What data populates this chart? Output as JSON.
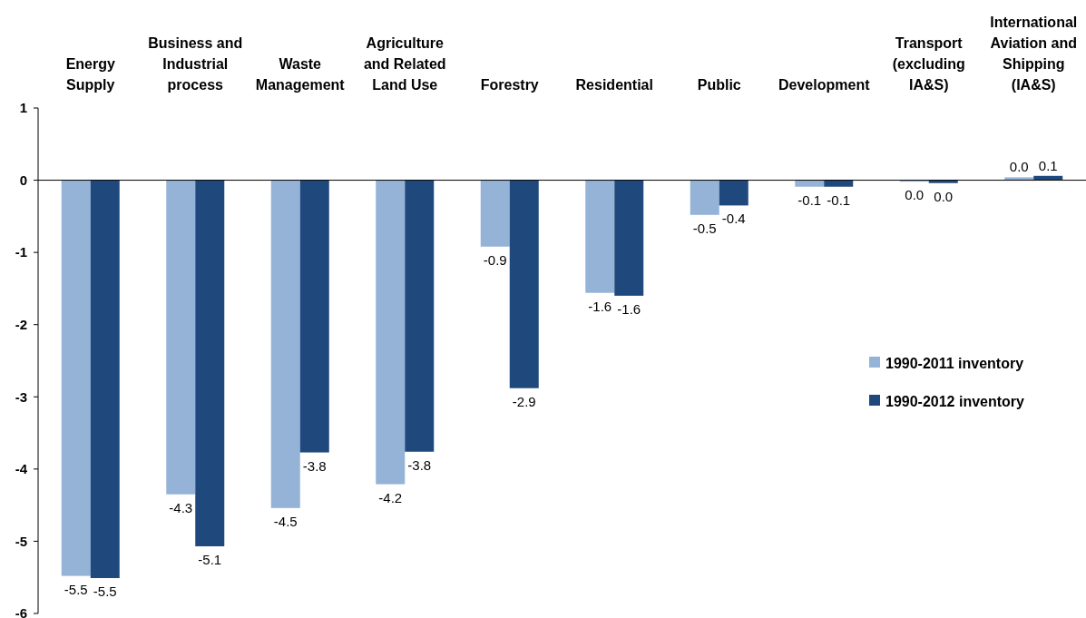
{
  "chart_data": {
    "type": "bar",
    "categories": [
      "Energy Supply",
      "Business and Industrial process",
      "Waste Management",
      "Agriculture and Related Land Use",
      "Forestry",
      "Residential",
      "Public",
      "Development",
      "Transport (excluding IA&S)",
      "International Aviation and Shipping (IA&S)"
    ],
    "series": [
      {
        "name": "1990-2011 inventory",
        "color": "#95b3d7",
        "values": [
          -5.48,
          -4.35,
          -4.54,
          -4.21,
          -0.92,
          -1.56,
          -0.48,
          -0.09,
          -0.02,
          0.04
        ],
        "value_labels": [
          "-5.5",
          "-4.3",
          "-4.5",
          "-4.2",
          "-0.9",
          "-1.6",
          "-0.5",
          "-0.1",
          "0.0",
          "0.0"
        ]
      },
      {
        "name": "1990-2012 inventory",
        "color": "#1f497d",
        "values": [
          -5.51,
          -5.07,
          -3.77,
          -3.76,
          -2.88,
          -1.6,
          -0.35,
          -0.09,
          -0.04,
          0.06
        ],
        "value_labels": [
          "-5.5",
          "-5.1",
          "-3.8",
          "-3.8",
          "-2.9",
          "-1.6",
          "-0.4",
          "-0.1",
          "0.0",
          "0.1"
        ]
      }
    ],
    "ylim": [
      -6,
      1
    ],
    "yticks": [
      -6,
      -5,
      -4,
      -3,
      -2,
      -1,
      0,
      1
    ],
    "legend": "right"
  }
}
